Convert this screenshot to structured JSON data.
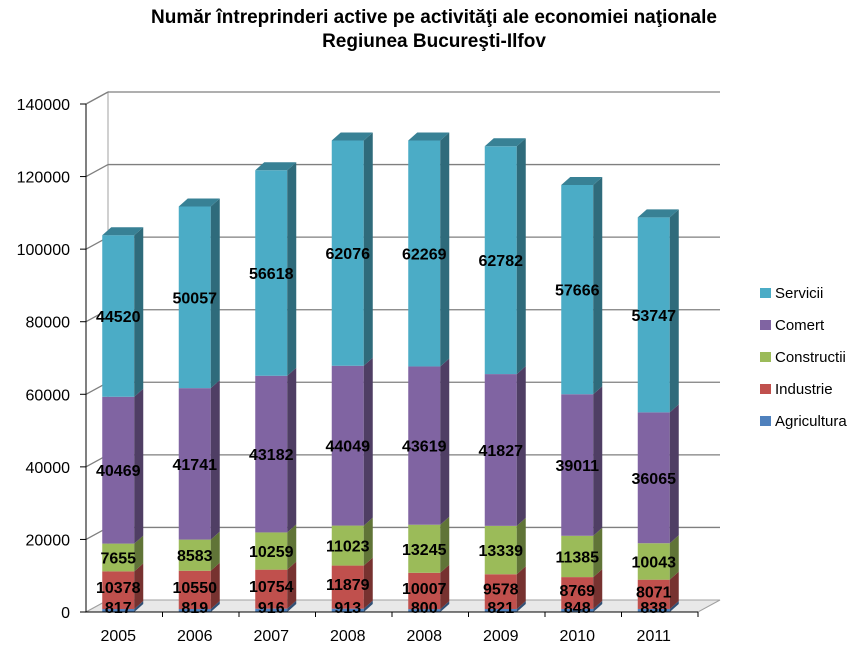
{
  "chart_data": {
    "type": "bar",
    "stacked": true,
    "title": "Număr întreprinderi active pe activităţi ale economiei naţionale",
    "subtitle": "Regiunea Bucureşti-Ilfov",
    "xlabel": "",
    "ylabel": "",
    "categories": [
      "2005",
      "2006",
      "2007",
      "2008",
      "2008",
      "2009",
      "2010",
      "2011"
    ],
    "ylim": [
      0,
      140000
    ],
    "yticks": [
      "0",
      "20000",
      "40000",
      "60000",
      "80000",
      "100000",
      "120000",
      "140000"
    ],
    "grid": true,
    "legend_position": "right",
    "series": [
      {
        "name": "Agricultura",
        "color": "#4f81bd",
        "values": [
          817,
          819,
          916,
          913,
          800,
          821,
          848,
          838
        ]
      },
      {
        "name": "Industrie",
        "color": "#c0504d",
        "values": [
          10378,
          10550,
          10754,
          11879,
          10007,
          9578,
          8769,
          8071
        ]
      },
      {
        "name": "Constructii",
        "color": "#9bbb59",
        "values": [
          7655,
          8583,
          10259,
          11023,
          13245,
          13339,
          11385,
          10043
        ]
      },
      {
        "name": "Comert",
        "color": "#8064a2",
        "values": [
          40469,
          41741,
          43182,
          44049,
          43619,
          41827,
          39011,
          36065
        ]
      },
      {
        "name": "Servicii",
        "color": "#4bacc6",
        "values": [
          44520,
          50057,
          56618,
          62076,
          62269,
          62782,
          57666,
          53747
        ]
      }
    ]
  }
}
